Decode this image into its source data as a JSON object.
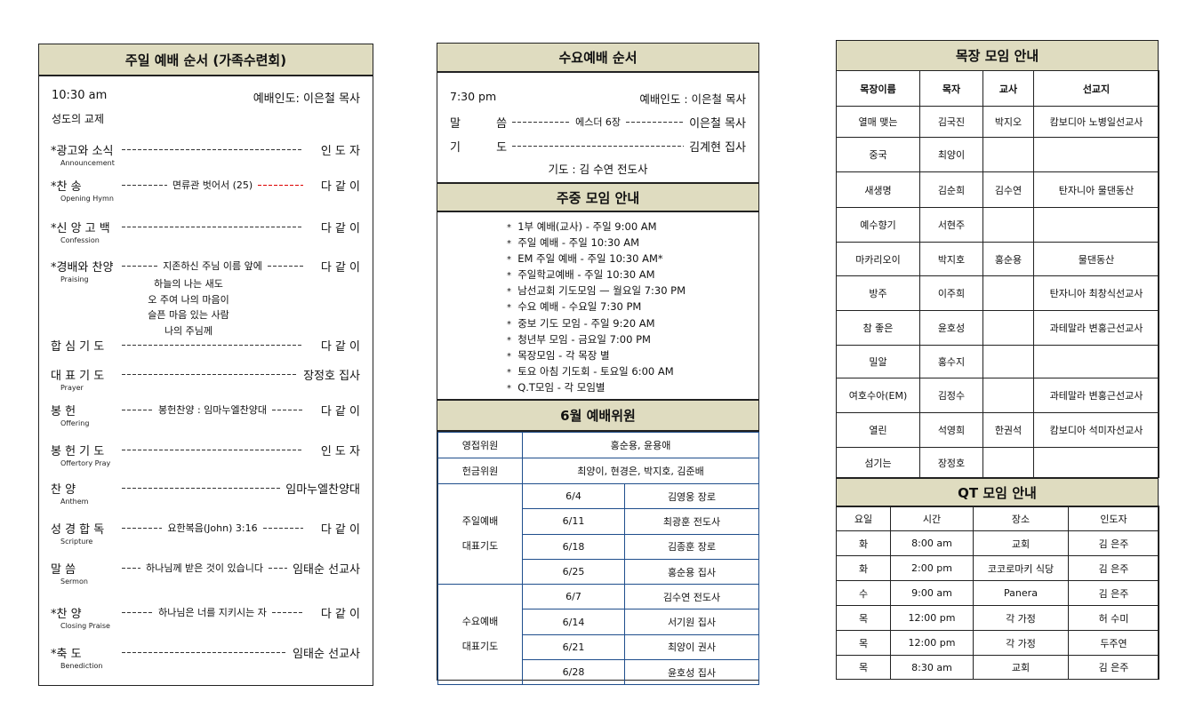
{
  "sunday": {
    "title": "주일 예배 순서 (가족수련회)",
    "time": "10:30 am",
    "leader": "예배인도: 이은철 목사",
    "greeting": "성도의 교제",
    "items": [
      {
        "label": "*광고와 소식",
        "sub": "Announcement",
        "middle": "",
        "right": "인 도 자"
      },
      {
        "label": "*찬 송",
        "sub": "Opening Hymn",
        "middle": "면류관 벗어서 (25)",
        "right": "다 같 이",
        "red": true
      },
      {
        "label": "*신 앙 고 백",
        "sub": "Confession",
        "middle": "",
        "right": "다 같 이"
      },
      {
        "label": "*경배와 찬양",
        "sub": "Praising",
        "middle": "지존하신 주님 이름 앞에",
        "right": "다 같 이"
      },
      {
        "label": "합 심 기 도",
        "sub": "",
        "middle": "",
        "right": "다 같 이"
      },
      {
        "label": "대 표 기 도",
        "sub": "Prayer",
        "middle": "",
        "right": "장정호 집사"
      },
      {
        "label": "봉 헌",
        "sub": "Offering",
        "middle": "봉헌찬양 : 임마누엘찬양대",
        "right": "다 같 이"
      },
      {
        "label": "봉 헌 기 도",
        "sub": "Offertory Pray",
        "middle": "",
        "right": "인 도 자"
      },
      {
        "label": "찬 양",
        "sub": "Anthem",
        "middle": "",
        "right": "임마누엘찬양대"
      },
      {
        "label": "성 경 합 독",
        "sub": "Scripture",
        "middle": "요한복음(John) 3:16",
        "right": "다 같 이"
      },
      {
        "label": "말 씀",
        "sub": "Sermon",
        "middle": "하나님께 받은 것이 있습니다",
        "right": "임태순 선교사"
      },
      {
        "label": "*찬 양",
        "sub": "Closing Praise",
        "middle": "하나님은 너를 지키시는 자",
        "right": "다 같 이"
      },
      {
        "label": "*축 도",
        "sub": "Benediction",
        "middle": "",
        "right": "임태순 선교사"
      }
    ],
    "lyrics": [
      "하늘의 나는 새도",
      "오 주여 나의 마음이",
      "슬픈 마음 있는 사람",
      "나의 주님께"
    ]
  },
  "wednesday": {
    "title": "수요예배 순서",
    "time": "7:30 pm",
    "leader": "예배인도 : 이은철 목사",
    "items": [
      {
        "label": "말 씀",
        "middle": "에스더 6장",
        "right": "이은철 목사"
      },
      {
        "label": "기 도",
        "middle": "",
        "right": "김계현 집사"
      }
    ],
    "note": "기도 : 김 수연 전도사"
  },
  "weekly": {
    "title": "주중 모임 안내",
    "items": [
      "1부 예배(교사) - 주일 9:00 AM",
      "주일 예배 - 주일 10:30 AM",
      "EM 주일 예배 - 주일 10:30 AM*",
      "주일학교예배 - 주일 10:30 AM",
      "남선교회 기도모임 — 월요일 7:30 PM",
      "수요 예배 - 수요일 7:30 PM",
      "중보 기도 모임 - 주일 9:20 AM",
      "청년부 모임 - 금요일 7:00 PM",
      "목장모임 - 각 목장 별",
      "토요 아침 기도회 - 토요일 6:00 AM",
      "Q.T모임 - 각 모임별"
    ]
  },
  "june": {
    "title": "6월 예배위원",
    "ushers_label": "영접위원",
    "ushers": "홍순용, 윤용애",
    "offering_label": "헌금위원",
    "offering": "최양이, 현경은, 박지호, 김준배",
    "sunday_label": [
      "주일예배",
      "대표기도"
    ],
    "sunday": [
      [
        "6/4",
        "김영웅 장로"
      ],
      [
        "6/11",
        "최광훈 전도사"
      ],
      [
        "6/18",
        "김종훈 장로"
      ],
      [
        "6/25",
        "홍순용 집사"
      ]
    ],
    "wed_label": [
      "수요예배",
      "대표기도"
    ],
    "wed": [
      [
        "6/7",
        "김수연 전도사"
      ],
      [
        "6/14",
        "서기원 집사"
      ],
      [
        "6/21",
        "최양이 권사"
      ],
      [
        "6/28",
        "윤호성 집사"
      ]
    ]
  },
  "mokjang": {
    "title": "목장 모임 안내",
    "headers": [
      "목장이름",
      "목자",
      "교사",
      "선교지"
    ],
    "rows": [
      [
        "열매 맺는",
        "김국진",
        "박지오",
        "캄보디아 노병일선교사"
      ],
      [
        "중국",
        "최양이",
        "",
        ""
      ],
      [
        "새생명",
        "김순희",
        "김수연",
        "탄자니아  물댄동산"
      ],
      [
        "예수향기",
        "서현주",
        "",
        ""
      ],
      [
        "마카리오이",
        "박지호",
        "홍순용",
        "물댄동산"
      ],
      [
        "방주",
        "이주희",
        "",
        "탄자니아 최창식선교사"
      ],
      [
        "참 좋은",
        "윤호성",
        "",
        "과테말라 변홍근선교사"
      ],
      [
        "밀알",
        "홍수지",
        "",
        ""
      ],
      [
        "여호수아(EM)",
        "김정수",
        "",
        "과테말라 변홍근선교사"
      ],
      [
        "열린",
        "석영희",
        "한권석",
        "캄보디아 석미자선교사"
      ],
      [
        "섬기는",
        "장정호",
        "",
        ""
      ]
    ]
  },
  "qt": {
    "title": "QT 모임 안내",
    "headers": [
      "요일",
      "시간",
      "장소",
      "인도자"
    ],
    "rows": [
      [
        "화",
        "8:00 am",
        "교회",
        "김 은주"
      ],
      [
        "화",
        "2:00 pm",
        "코코로마키 식당",
        "김 은주"
      ],
      [
        "수",
        "9:00 am",
        "Panera",
        "김 은주"
      ],
      [
        "목",
        "12:00 pm",
        "각 가정",
        "허 수미"
      ],
      [
        "목",
        "12:00 pm",
        "각 가정",
        "두주연"
      ],
      [
        "목",
        "8:30 am",
        "교회",
        "김 은주"
      ]
    ]
  }
}
